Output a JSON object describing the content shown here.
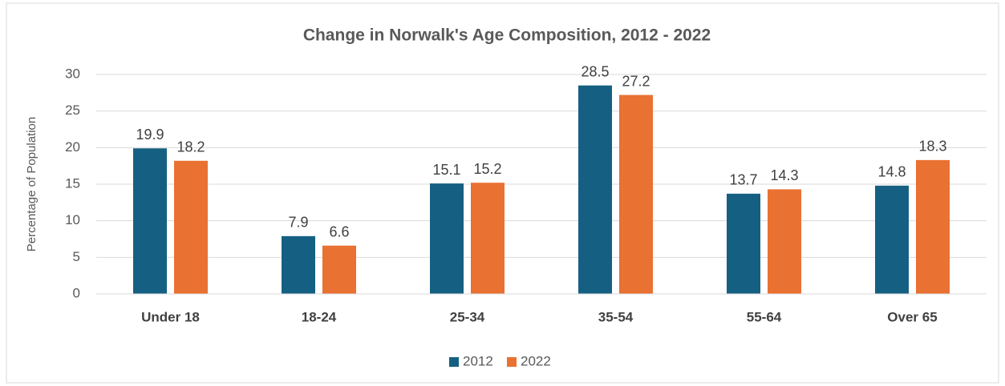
{
  "chart_data": {
    "type": "bar",
    "title": "Change in Norwalk's Age Composition, 2012 - 2022",
    "y_label": "Percentage of Population",
    "categories": [
      "Under 18",
      "18-24",
      "25-34",
      "35-54",
      "55-64",
      "Over 65"
    ],
    "series": [
      {
        "name": "2012",
        "color": "#156082",
        "values": [
          19.9,
          7.9,
          15.1,
          28.5,
          13.7,
          14.8
        ]
      },
      {
        "name": "2022",
        "color": "#e97132",
        "values": [
          18.2,
          6.6,
          15.2,
          27.2,
          14.3,
          18.3
        ]
      }
    ],
    "ylim": [
      0,
      30
    ],
    "yticks": [
      0,
      5,
      10,
      15,
      20,
      25,
      30
    ],
    "grid": true,
    "legend": "bottom"
  }
}
